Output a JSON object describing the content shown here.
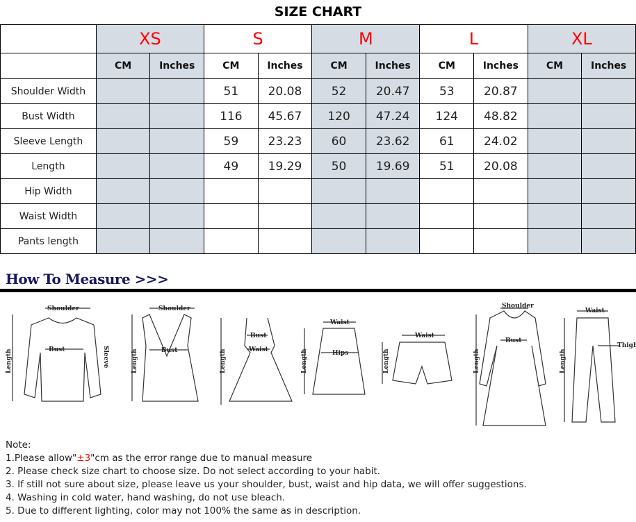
{
  "title": "SIZE CHART",
  "sizes": [
    "XS",
    "S",
    "M",
    "L",
    "XL"
  ],
  "units": [
    "CM",
    "Inches"
  ],
  "rows": [
    {
      "label": "Shoulder Width",
      "values": [
        "",
        "",
        "51",
        "20.08",
        "52",
        "20.47",
        "53",
        "20.87",
        "",
        ""
      ]
    },
    {
      "label": "Bust Width",
      "values": [
        "",
        "",
        "116",
        "45.67",
        "120",
        "47.24",
        "124",
        "48.82",
        "",
        ""
      ]
    },
    {
      "label": "Sleeve Length",
      "values": [
        "",
        "",
        "59",
        "23.23",
        "60",
        "23.62",
        "61",
        "24.02",
        "",
        ""
      ]
    },
    {
      "label": "Length",
      "values": [
        "",
        "",
        "49",
        "19.29",
        "50",
        "19.69",
        "51",
        "20.08",
        "",
        ""
      ]
    },
    {
      "label": "Hip Width",
      "values": [
        "",
        "",
        "",
        "",
        "",
        "",
        "",
        "",
        "",
        ""
      ]
    },
    {
      "label": "Waist Width",
      "values": [
        "",
        "",
        "",
        "",
        "",
        "",
        "",
        "",
        "",
        ""
      ]
    },
    {
      "label": "Pants length",
      "values": [
        "",
        "",
        "",
        "",
        "",
        "",
        "",
        "",
        "",
        ""
      ]
    }
  ],
  "colors": {
    "size_label": "#ff0000",
    "shaded_column": "#d6dce4",
    "heading": "#16175e"
  },
  "how_to_measure": "How To Measure >>>",
  "figures": [
    {
      "labels": [
        "Shoulder",
        "Bust",
        "Sleeve",
        "Length"
      ]
    },
    {
      "labels": [
        "Shoulder",
        "Bust",
        "Length"
      ]
    },
    {
      "labels": [
        "Bust",
        "Waist",
        "Length"
      ]
    },
    {
      "labels": [
        "Waist",
        "Hips",
        "Length"
      ]
    },
    {
      "labels": [
        "Waist",
        "Length"
      ]
    },
    {
      "labels": [
        "Shoulder",
        "Bust",
        "Length"
      ]
    },
    {
      "labels": [
        "Waist",
        "Thigh",
        "Length"
      ]
    }
  ],
  "notes": {
    "heading": "Note:",
    "line1_pre": "1.Please allow\"",
    "line1_red": "±3",
    "line1_post": "\"cm as the error range due to manual measure",
    "line2": "2. Please check size chart to choose size. Do not select according to your habit.",
    "line3": "3. If still not sure about size, please leave us your shoulder, bust, waist and hip data, we will offer suggestions.",
    "line4": "4. Washing in cold water, hand washing, do not use bleach.",
    "line5": "5. Due to different lighting, color may not 100% the same as in description."
  }
}
